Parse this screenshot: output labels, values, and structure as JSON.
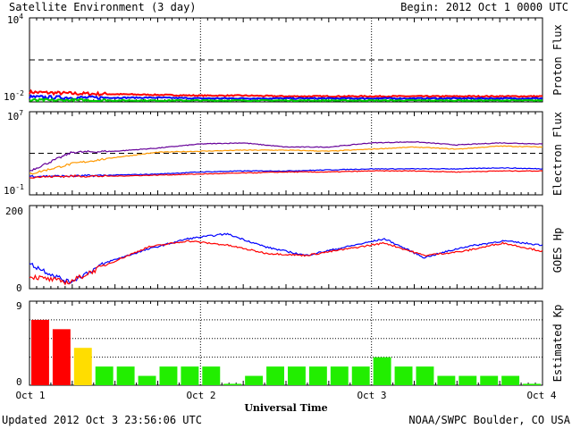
{
  "header": {
    "title": "Satellite Environment (3 day)",
    "begin": "Begin:  2012 Oct 1 0000 UTC"
  },
  "footer": {
    "updated": "Updated 2012 Oct  3 23:56:06 UTC",
    "credit": "NOAA/SWPC Boulder, CO USA"
  },
  "x_axis": {
    "label": "Universal Time",
    "ticks": [
      "Oct 1",
      "Oct 2",
      "Oct 3",
      "Oct 4"
    ]
  },
  "panels": {
    "proton": {
      "ylabel": "Proton Flux",
      "ytick_top": "10",
      "ytick_top_exp": "4",
      "ytick_bottom": "10",
      "ytick_bottom_exp": "-2"
    },
    "electron": {
      "ylabel": "Electron Flux",
      "ytick_top": "10",
      "ytick_top_exp": "7",
      "ytick_bottom": "10",
      "ytick_bottom_exp": "-1"
    },
    "goes": {
      "ylabel": "GOES Hp",
      "ytick_top": "200",
      "ytick_bottom": "0"
    },
    "kp": {
      "ylabel": "Estimated Kp",
      "ytick_top": "9",
      "ytick_bottom": "0"
    }
  },
  "chart_data": [
    {
      "type": "line",
      "panel": "proton",
      "y_scale": "log",
      "ylim_exp": [
        -2,
        4
      ],
      "threshold_exp": 1,
      "x_days": [
        0,
        3
      ],
      "series": [
        {
          "color": "#ff0000",
          "approx_exp": [
            -1.3,
            -1.4,
            -1.45,
            -1.5,
            -1.55,
            -1.55,
            -1.6,
            -1.6,
            -1.6,
            -1.6,
            -1.6,
            -1.6,
            -1.6
          ]
        },
        {
          "color": "#0000ff",
          "approx_exp": [
            -1.65,
            -1.7,
            -1.7,
            -1.7,
            -1.75,
            -1.75,
            -1.75,
            -1.75,
            -1.75,
            -1.75,
            -1.75,
            -1.75,
            -1.75
          ]
        },
        {
          "color": "#00cc00",
          "approx_exp": [
            -1.9,
            -1.9,
            -1.9,
            -1.9,
            -1.9,
            -1.9,
            -1.9,
            -1.9,
            -1.9,
            -1.9,
            -1.9,
            -1.9,
            -1.9
          ]
        }
      ]
    },
    {
      "type": "line",
      "panel": "electron",
      "y_scale": "log",
      "ylim_exp": [
        -1,
        7
      ],
      "threshold_exp": 3,
      "x_days": [
        0,
        3
      ],
      "series": [
        {
          "color": "#660099",
          "approx_exp": [
            1.3,
            3.1,
            3.2,
            3.5,
            3.9,
            4.0,
            3.6,
            3.6,
            4.0,
            4.1,
            3.8,
            4.0,
            3.9
          ]
        },
        {
          "color": "#ff9900",
          "approx_exp": [
            1.0,
            2.0,
            2.6,
            3.1,
            3.2,
            3.3,
            3.3,
            3.2,
            3.4,
            3.6,
            3.4,
            3.7,
            3.6
          ]
        },
        {
          "color": "#0000ff",
          "approx_exp": [
            0.8,
            0.8,
            0.9,
            1.0,
            1.2,
            1.3,
            1.3,
            1.4,
            1.5,
            1.5,
            1.5,
            1.6,
            1.5
          ]
        },
        {
          "color": "#ff0000",
          "approx_exp": [
            0.7,
            0.8,
            0.8,
            0.9,
            1.0,
            1.1,
            1.2,
            1.2,
            1.3,
            1.3,
            1.2,
            1.3,
            1.3
          ]
        }
      ]
    },
    {
      "type": "line",
      "panel": "goes",
      "ylim": [
        0,
        200
      ],
      "x_days": [
        0,
        3
      ],
      "series": [
        {
          "color": "#0000ff",
          "approx_values": [
            60,
            15,
            65,
            95,
            120,
            132,
            100,
            80,
            100,
            120,
            75,
            100,
            115,
            105
          ]
        },
        {
          "color": "#ff0000",
          "approx_values": [
            30,
            15,
            60,
            100,
            115,
            105,
            85,
            80,
            95,
            110,
            80,
            90,
            110,
            90
          ]
        }
      ]
    },
    {
      "type": "bar",
      "panel": "kp",
      "ylim": [
        0,
        9
      ],
      "interval_hours": 3,
      "values": [
        7,
        6,
        4,
        2,
        2,
        1,
        2,
        2,
        2,
        0,
        1,
        2,
        2,
        2,
        2,
        2,
        3,
        2,
        2,
        1,
        1,
        1,
        1,
        0
      ],
      "colors": {
        "quiet": "#22ee00",
        "active": "#ffdd00",
        "storm": "#ff0000"
      }
    }
  ]
}
